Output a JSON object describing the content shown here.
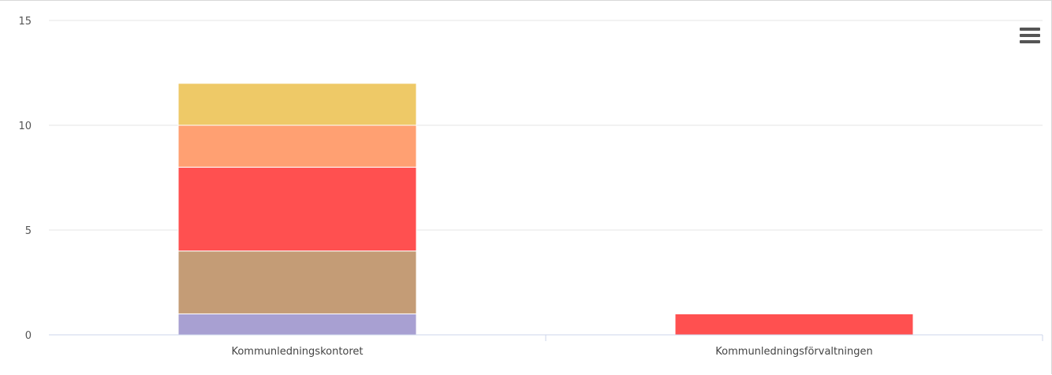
{
  "chart_data": {
    "type": "bar",
    "stacked": true,
    "categories": [
      "Kommunledningskontoret",
      "Kommunledningsförvaltningen"
    ],
    "series": [
      {
        "color": "#a8a0d2",
        "values": [
          1,
          0
        ]
      },
      {
        "color": "#c49c76",
        "values": [
          3,
          0
        ]
      },
      {
        "color": "#ff5050",
        "values": [
          4,
          1
        ]
      },
      {
        "color": "#ffa072",
        "values": [
          2,
          0
        ]
      },
      {
        "color": "#eec967",
        "values": [
          2,
          0
        ]
      }
    ],
    "ylim": [
      0,
      15
    ],
    "yticks": [
      0,
      5,
      10,
      15
    ],
    "grid": true
  },
  "menu": {
    "icon": "hamburger-menu-icon"
  }
}
